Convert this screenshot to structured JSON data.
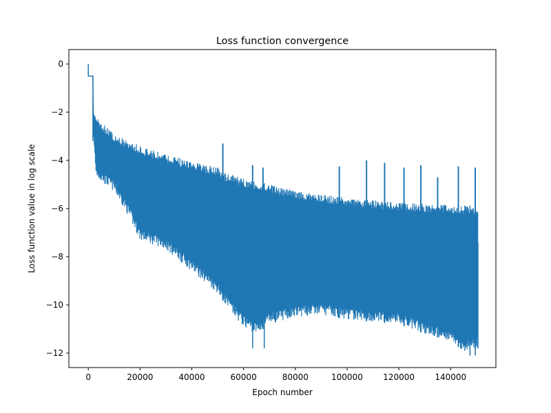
{
  "chart_data": {
    "type": "line",
    "title": "Loss function convergence",
    "xlabel": "Epoch number",
    "ylabel": "Loss function value in log scale",
    "xlim": [
      -7500,
      157500
    ],
    "ylim": [
      -12.6,
      0.6
    ],
    "xticks": [
      0,
      20000,
      40000,
      60000,
      80000,
      100000,
      120000,
      140000
    ],
    "xtick_labels": [
      "0",
      "20000",
      "40000",
      "60000",
      "80000",
      "100000",
      "120000",
      "140000"
    ],
    "yticks": [
      0,
      -2,
      -4,
      -6,
      -8,
      -10,
      -12
    ],
    "ytick_labels": [
      "0",
      "−2",
      "−4",
      "−6",
      "−8",
      "−10",
      "−12"
    ],
    "grid": false,
    "legend": "none",
    "colors": {
      "series": "#1f77b4",
      "axes": "#000000",
      "background": "#ffffff"
    },
    "series": [
      {
        "upper_envelope": {
          "x": [
            0,
            1800,
            2000,
            5000,
            10000,
            20000,
            30000,
            40000,
            50000,
            52000,
            60000,
            70000,
            80000,
            90000,
            100000,
            110000,
            120000,
            130000,
            140000,
            150000
          ],
          "y": [
            0,
            -0.5,
            -1.8,
            -2.4,
            -2.9,
            -3.4,
            -3.75,
            -4.05,
            -4.3,
            -4.5,
            -4.75,
            -5.0,
            -5.25,
            -5.4,
            -5.55,
            -5.65,
            -5.75,
            -5.8,
            -5.85,
            -5.9
          ]
        },
        "lower_envelope": {
          "x": [
            0,
            1800,
            2000,
            3000,
            5000,
            10000,
            15000,
            20000,
            30000,
            40000,
            50000,
            55000,
            60000,
            65000,
            70000,
            80000,
            90000,
            100000,
            110000,
            120000,
            130000,
            140000,
            145000,
            150000
          ],
          "y": [
            0,
            -0.5,
            -3.2,
            -4.7,
            -4.9,
            -5.3,
            -6.2,
            -7.3,
            -7.7,
            -8.6,
            -9.5,
            -10.3,
            -10.9,
            -11.2,
            -10.8,
            -10.5,
            -10.4,
            -10.6,
            -10.7,
            -10.8,
            -11.2,
            -11.5,
            -11.9,
            -11.8
          ]
        },
        "spikes": [
          {
            "x": 52000,
            "y": -3.3
          },
          {
            "x": 63500,
            "y": -4.2
          },
          {
            "x": 67500,
            "y": -4.3
          },
          {
            "x": 97000,
            "y": -4.25
          },
          {
            "x": 107500,
            "y": -4.0
          },
          {
            "x": 114500,
            "y": -4.1
          },
          {
            "x": 122000,
            "y": -4.3
          },
          {
            "x": 128500,
            "y": -4.2
          },
          {
            "x": 135000,
            "y": -4.7
          },
          {
            "x": 143000,
            "y": -4.25
          },
          {
            "x": 149500,
            "y": -4.3
          },
          {
            "x": 150500,
            "y": -7.4
          }
        ],
        "deep_spikes": [
          {
            "x": 63500,
            "y": -11.8
          },
          {
            "x": 68000,
            "y": -11.8
          },
          {
            "x": 145500,
            "y": -11.9
          },
          {
            "x": 147500,
            "y": -12.1
          },
          {
            "x": 149500,
            "y": -12.1
          }
        ],
        "initial_steps": [
          {
            "x": 0,
            "y": 0
          },
          {
            "x": 0,
            "y": -0.5
          },
          {
            "x": 1800,
            "y": -0.5
          },
          {
            "x": 1800,
            "y": -3.2
          }
        ]
      }
    ]
  }
}
